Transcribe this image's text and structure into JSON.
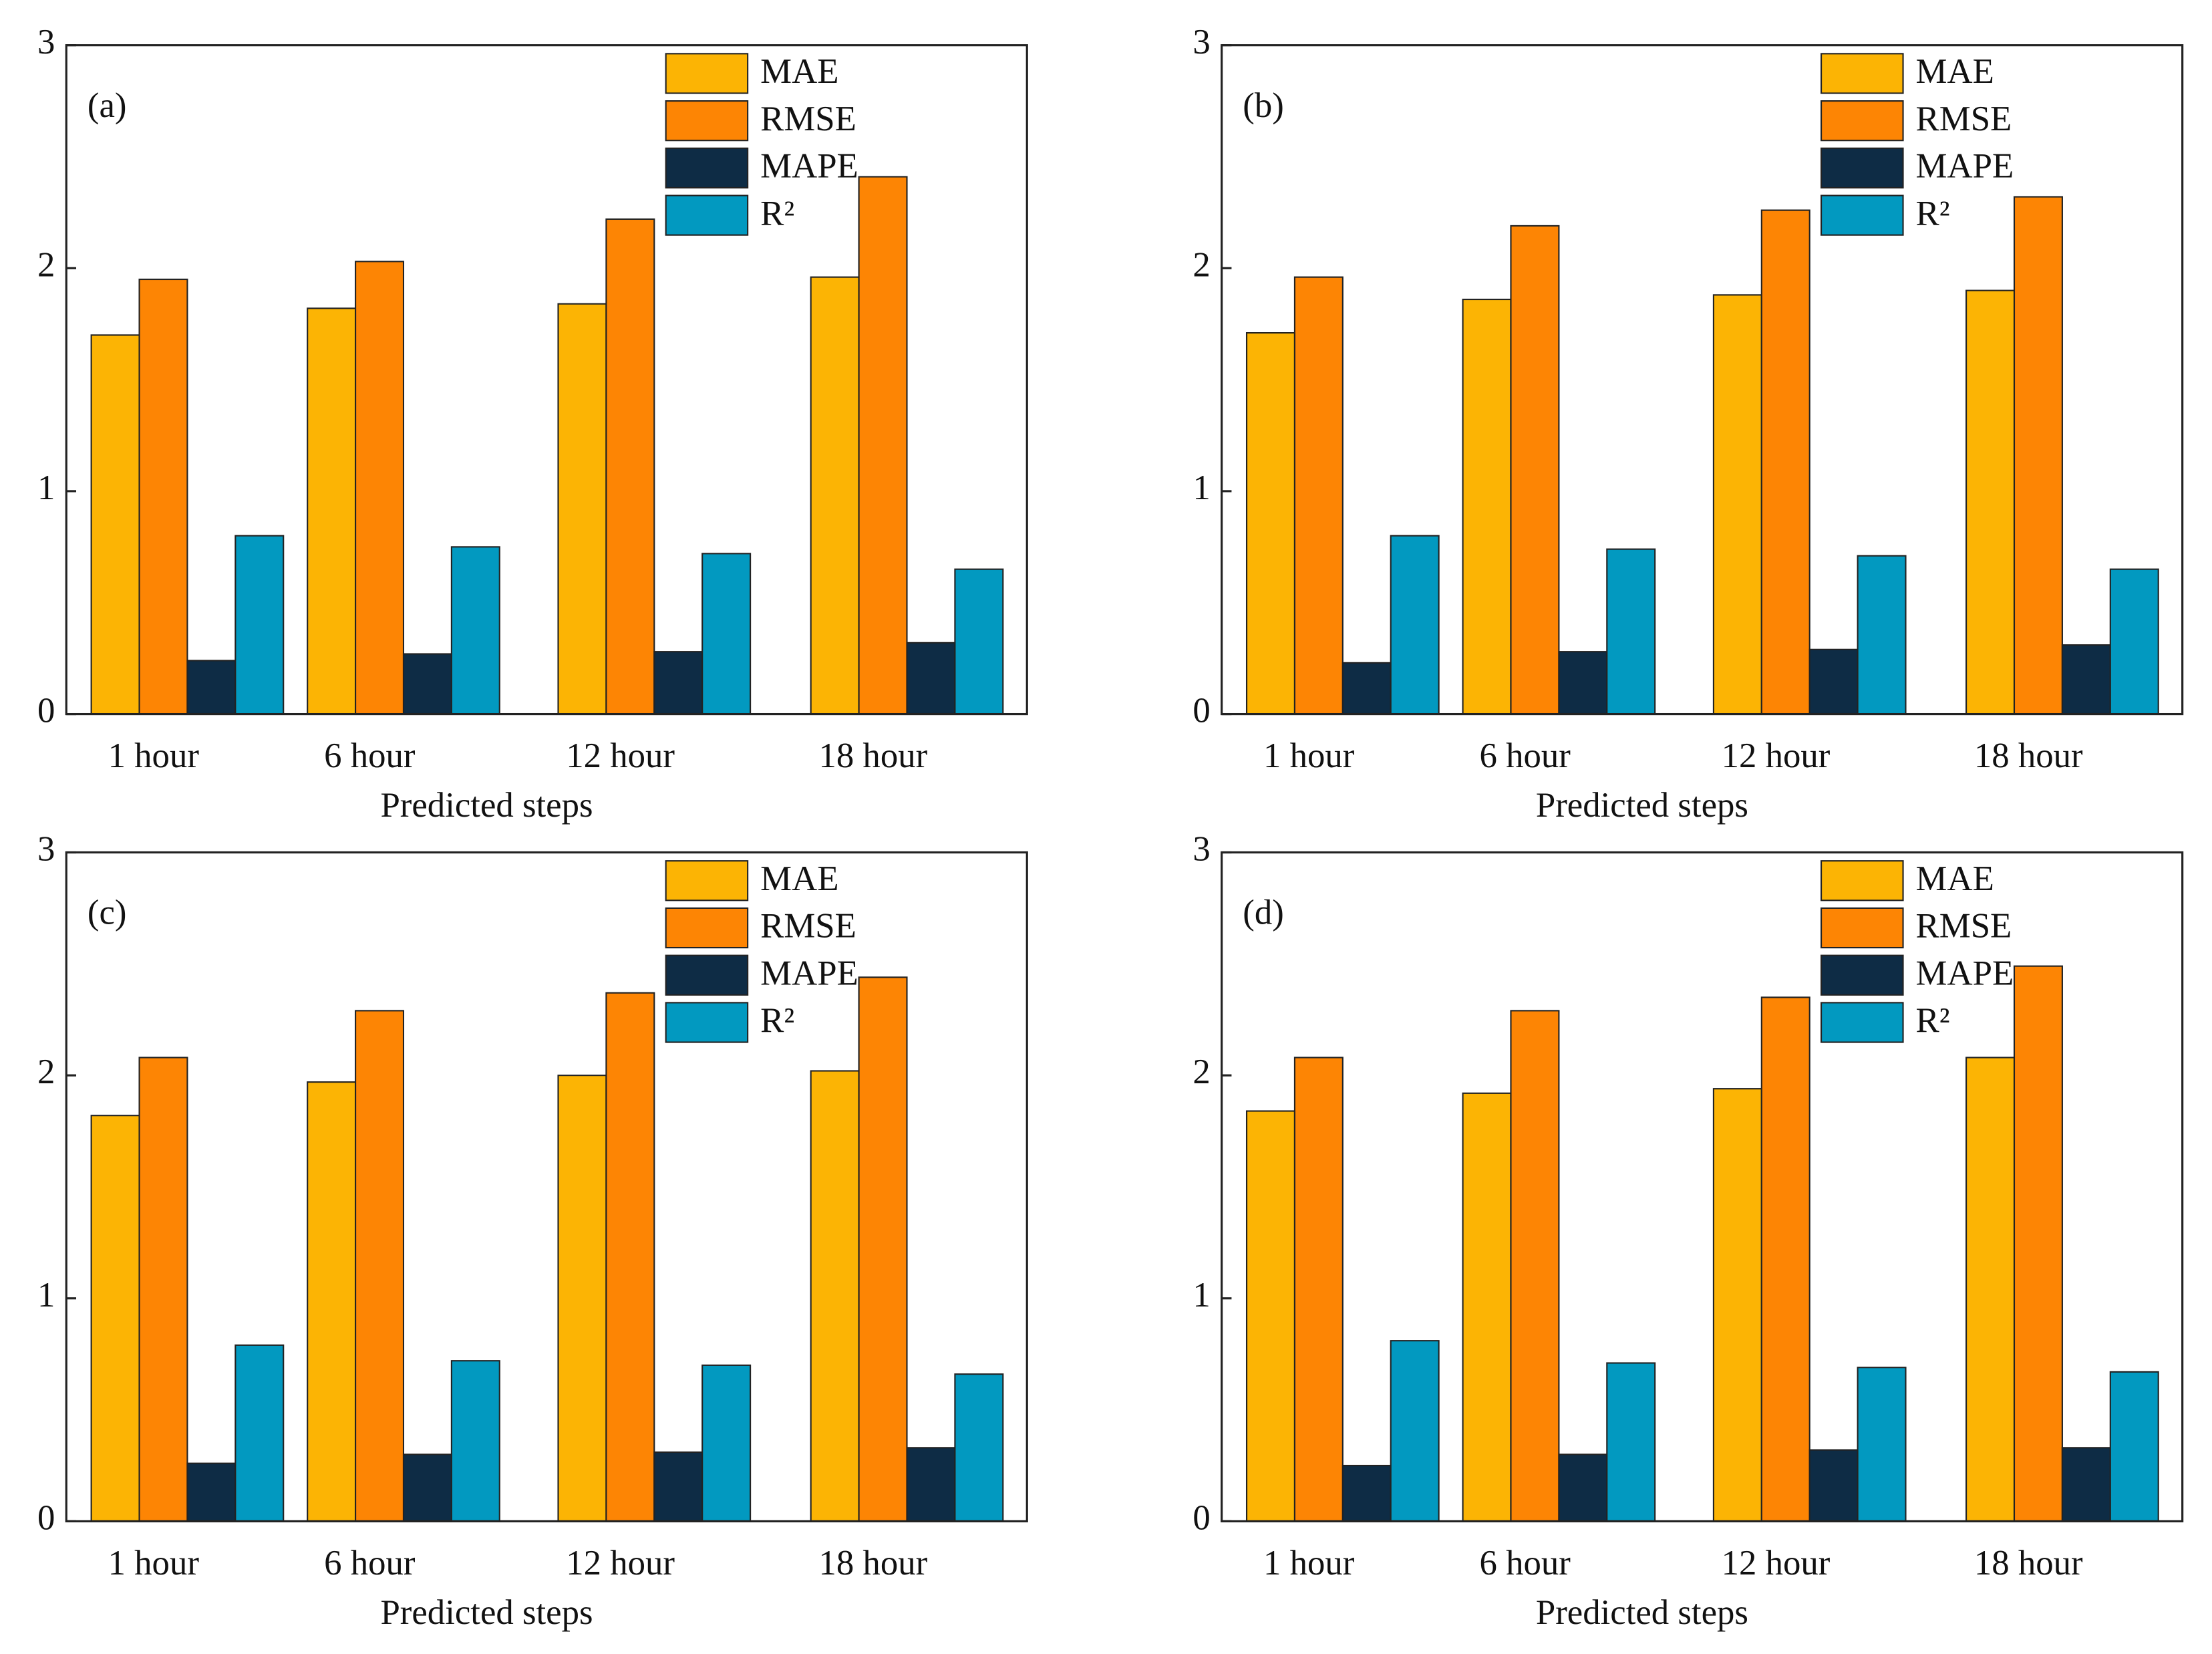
{
  "chart_data": [
    {
      "type": "bar",
      "panel_label": "(a)",
      "xlabel": "Predicted steps",
      "categories": [
        "1 hour",
        "6 hour",
        "12 hour",
        "18 hour"
      ],
      "ylim": [
        0,
        3
      ],
      "yticks": [
        0,
        1,
        2,
        3
      ],
      "legend": "upper right",
      "series": [
        {
          "name": "MAE",
          "color": "#fcb404",
          "values": [
            1.7,
            1.82,
            1.84,
            1.96
          ]
        },
        {
          "name": "RMSE",
          "color": "#fd8504",
          "values": [
            1.95,
            2.03,
            2.22,
            2.41
          ]
        },
        {
          "name": "MAPE",
          "color": "#0e2c45",
          "values": [
            0.24,
            0.27,
            0.28,
            0.32
          ]
        },
        {
          "name": "R²",
          "color": "#0299c0",
          "values": [
            0.8,
            0.75,
            0.72,
            0.65
          ]
        }
      ]
    },
    {
      "type": "bar",
      "panel_label": "(b)",
      "xlabel": "Predicted steps",
      "categories": [
        "1 hour",
        "6 hour",
        "12 hour",
        "18 hour"
      ],
      "ylim": [
        0,
        3
      ],
      "yticks": [
        0,
        1,
        2,
        3
      ],
      "legend": "upper right",
      "series": [
        {
          "name": "MAE",
          "color": "#fcb404",
          "values": [
            1.71,
            1.86,
            1.88,
            1.9
          ]
        },
        {
          "name": "RMSE",
          "color": "#fd8504",
          "values": [
            1.96,
            2.19,
            2.26,
            2.32
          ]
        },
        {
          "name": "MAPE",
          "color": "#0e2c45",
          "values": [
            0.23,
            0.28,
            0.29,
            0.31
          ]
        },
        {
          "name": "R²",
          "color": "#0299c0",
          "values": [
            0.8,
            0.74,
            0.71,
            0.65
          ]
        }
      ]
    },
    {
      "type": "bar",
      "panel_label": "(c)",
      "xlabel": "Predicted steps",
      "categories": [
        "1 hour",
        "6 hour",
        "12 hour",
        "18 hour"
      ],
      "ylim": [
        0,
        3
      ],
      "yticks": [
        0,
        1,
        2,
        3
      ],
      "legend": "upper right",
      "series": [
        {
          "name": "MAE",
          "color": "#fcb404",
          "values": [
            1.82,
            1.97,
            2.0,
            2.02
          ]
        },
        {
          "name": "RMSE",
          "color": "#fd8504",
          "values": [
            2.08,
            2.29,
            2.37,
            2.44
          ]
        },
        {
          "name": "MAPE",
          "color": "#0e2c45",
          "values": [
            0.26,
            0.3,
            0.31,
            0.33
          ]
        },
        {
          "name": "R²",
          "color": "#0299c0",
          "values": [
            0.79,
            0.72,
            0.7,
            0.66
          ]
        }
      ]
    },
    {
      "type": "bar",
      "panel_label": "(d)",
      "xlabel": "Predicted steps",
      "categories": [
        "1 hour",
        "6 hour",
        "12 hour",
        "18 hour"
      ],
      "ylim": [
        0,
        3
      ],
      "yticks": [
        0,
        1,
        2,
        3
      ],
      "legend": "upper right",
      "series": [
        {
          "name": "MAE",
          "color": "#fcb404",
          "values": [
            1.84,
            1.92,
            1.94,
            2.08
          ]
        },
        {
          "name": "RMSE",
          "color": "#fd8504",
          "values": [
            2.08,
            2.29,
            2.35,
            2.49
          ]
        },
        {
          "name": "MAPE",
          "color": "#0e2c45",
          "values": [
            0.25,
            0.3,
            0.32,
            0.33
          ]
        },
        {
          "name": "R²",
          "color": "#0299c0",
          "values": [
            0.81,
            0.71,
            0.69,
            0.67
          ]
        }
      ]
    }
  ]
}
